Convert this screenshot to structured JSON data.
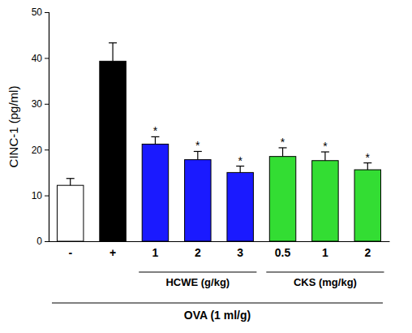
{
  "chart_data": {
    "type": "bar",
    "y_label": "CINC-1 (pg/ml)",
    "categories": [
      "-",
      "+",
      "1",
      "2",
      "3",
      "0.5",
      "1",
      "2"
    ],
    "values": [
      12.2,
      39.3,
      21.2,
      17.8,
      15.0,
      18.5,
      17.6,
      15.6
    ],
    "errors": [
      1.5,
      4.0,
      1.6,
      1.8,
      1.4,
      1.9,
      1.9,
      1.5
    ],
    "significance": [
      null,
      null,
      "*",
      "*",
      "*",
      "*",
      "*",
      "*"
    ],
    "colors": [
      "#ffffff",
      "#000000",
      "#1a1aff",
      "#1a1aff",
      "#1a1aff",
      "#33dd33",
      "#33dd33",
      "#33dd33"
    ],
    "groups": [
      {
        "label": "HCWE (g/kg)",
        "start": 2,
        "end": 4
      },
      {
        "label": "CKS (mg/kg)",
        "start": 5,
        "end": 7
      }
    ],
    "treatment_label": "OVA (1 ml/g)",
    "ylim": [
      0,
      50
    ],
    "yticks": [
      0,
      10,
      20,
      30,
      40,
      50
    ],
    "grid": false
  }
}
